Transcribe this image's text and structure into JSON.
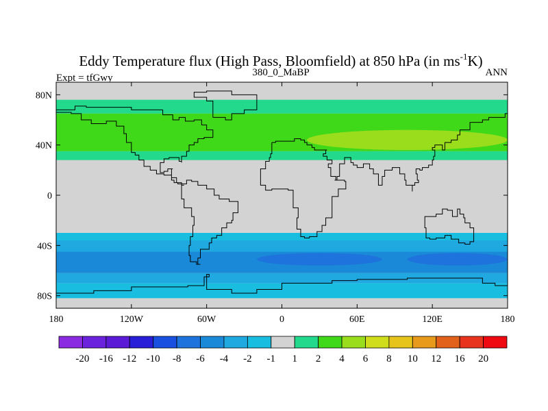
{
  "chart_data": {
    "type": "heatmap",
    "title": "Eddy Temperature flux (High Pass, Bloomfield) at 850 hPa (in ms",
    "title_superscript": "-1",
    "title_end": "K)",
    "left_label": "Expt = tfGwy",
    "center_label": "380_0_MaBP",
    "right_label": "ANN",
    "xlabel": "",
    "ylabel": "",
    "xlim": [
      -180,
      180
    ],
    "ylim": [
      -90,
      90
    ],
    "x_ticks": [
      {
        "value": -180,
        "label": "180"
      },
      {
        "value": -120,
        "label": "120W"
      },
      {
        "value": -60,
        "label": "60W"
      },
      {
        "value": 0,
        "label": "0"
      },
      {
        "value": 60,
        "label": "60E"
      },
      {
        "value": 120,
        "label": "120E"
      },
      {
        "value": 180,
        "label": "180"
      }
    ],
    "y_ticks": [
      {
        "value": 80,
        "label": "80N"
      },
      {
        "value": 40,
        "label": "40N"
      },
      {
        "value": 0,
        "label": "0"
      },
      {
        "value": -40,
        "label": "40S"
      },
      {
        "value": -80,
        "label": "80S"
      }
    ],
    "colorbar": {
      "levels": [
        "-20",
        "-16",
        "-12",
        "-10",
        "-8",
        "-6",
        "-4",
        "-2",
        "-1",
        "1",
        "2",
        "4",
        "6",
        "8",
        "10",
        "12",
        "16",
        "20"
      ],
      "colors": [
        "#8a2be2",
        "#6a22dc",
        "#5a1ad6",
        "#2a1fd8",
        "#1a50e0",
        "#1e74dc",
        "#1a8ad8",
        "#20a8e0",
        "#18bde0",
        "#d3d3d3",
        "#22d98c",
        "#3fd91a",
        "#99dd1c",
        "#cfdd1c",
        "#e7c41c",
        "#e79a1c",
        "#e2621c",
        "#e8341c",
        "#ee0a10"
      ]
    },
    "background_color": "#d3d3d3",
    "zonal_bands": [
      {
        "lat_from": 76,
        "lat_to": 65,
        "level": "1 to 2",
        "color": "#22d98c"
      },
      {
        "lat_from": 65,
        "lat_to": 35,
        "level": "2 to 4",
        "color": "#3fd91a"
      },
      {
        "lat_from": 35,
        "lat_to": 28,
        "level": "1 to 2",
        "color": "#22d98c"
      },
      {
        "lat_from": -30,
        "lat_to": -36,
        "level": "-2 to -1",
        "color": "#18bde0"
      },
      {
        "lat_from": -36,
        "lat_to": -45,
        "level": "-4 to -2",
        "color": "#20a8e0"
      },
      {
        "lat_from": -45,
        "lat_to": -62,
        "level": "-6 to -4",
        "color": "#1a8ad8"
      },
      {
        "lat_from": -62,
        "lat_to": -70,
        "level": "-4 to -2",
        "color": "#20a8e0"
      },
      {
        "lat_from": -70,
        "lat_to": -82,
        "level": "-2 to -1",
        "color": "#18bde0"
      }
    ],
    "patches": [
      {
        "lon_min": 20,
        "lon_max": 180,
        "lat_min": 36,
        "lat_max": 52,
        "color": "#99dd1c",
        "level": "4 to 6"
      },
      {
        "lon_min": -20,
        "lon_max": 80,
        "lat_min": -46,
        "lat_max": -56,
        "color": "#1e74dc",
        "level": "-8 to -6"
      },
      {
        "lon_min": 100,
        "lon_max": 180,
        "lat_min": -46,
        "lat_max": -56,
        "color": "#1e74dc",
        "level": "-8 to -6"
      }
    ],
    "coastlines": [
      [
        [
          -8,
          42
        ],
        [
          -5,
          43
        ],
        [
          5,
          43
        ],
        [
          10,
          45
        ],
        [
          13,
          45
        ],
        [
          15,
          44
        ],
        [
          18,
          42
        ],
        [
          20,
          40
        ],
        [
          24,
          38
        ],
        [
          26,
          36
        ],
        [
          30,
          36
        ],
        [
          36,
          36
        ],
        [
          35,
          33
        ],
        [
          33,
          31
        ],
        [
          36,
          28
        ],
        [
          40,
          25
        ],
        [
          37,
          22
        ],
        [
          39,
          15
        ],
        [
          43,
          12
        ],
        [
          50,
          11
        ],
        [
          51,
          5
        ],
        [
          45,
          -1
        ],
        [
          40,
          -5
        ],
        [
          40,
          -12
        ],
        [
          40,
          -18
        ],
        [
          35,
          -24
        ],
        [
          32,
          -29
        ],
        [
          28,
          -33
        ],
        [
          22,
          -34
        ],
        [
          18,
          -33
        ],
        [
          15,
          -27
        ],
        [
          12,
          -18
        ],
        [
          13,
          -10
        ],
        [
          9,
          -1
        ],
        [
          9,
          4
        ],
        [
          5,
          5
        ],
        [
          -4,
          5
        ],
        [
          -8,
          4
        ],
        [
          -13,
          8
        ],
        [
          -17,
          14
        ],
        [
          -17,
          21
        ],
        [
          -13,
          27
        ],
        [
          -10,
          30
        ],
        [
          -9,
          33
        ],
        [
          -8,
          36
        ],
        [
          -8,
          42
        ]
      ],
      [
        [
          42,
          12
        ],
        [
          44,
          15
        ],
        [
          46,
          25
        ],
        [
          50,
          30
        ],
        [
          55,
          26
        ],
        [
          57,
          24
        ],
        [
          60,
          22
        ],
        [
          65,
          25
        ],
        [
          70,
          21
        ],
        [
          73,
          17
        ],
        [
          77,
          8
        ],
        [
          80,
          15
        ],
        [
          82,
          20
        ],
        [
          88,
          22
        ],
        [
          91,
          22
        ],
        [
          94,
          17
        ],
        [
          98,
          12
        ],
        [
          99,
          8
        ],
        [
          104,
          3
        ],
        [
          104,
          8
        ],
        [
          106,
          10
        ],
        [
          109,
          12
        ],
        [
          108,
          17
        ],
        [
          107,
          21
        ],
        [
          110,
          20
        ],
        [
          112,
          22
        ],
        [
          117,
          24
        ],
        [
          120,
          28
        ],
        [
          121,
          31
        ],
        [
          122,
          36
        ],
        [
          120,
          38
        ],
        [
          122,
          40
        ],
        [
          128,
          36
        ],
        [
          130,
          42
        ],
        [
          135,
          44
        ],
        [
          140,
          48
        ],
        [
          142,
          52
        ],
        [
          150,
          58
        ],
        [
          160,
          60
        ],
        [
          165,
          62
        ],
        [
          178,
          65
        ],
        [
          180,
          68
        ]
      ],
      [
        [
          -180,
          66
        ],
        [
          -168,
          65
        ],
        [
          -160,
          60
        ],
        [
          -152,
          57
        ],
        [
          -140,
          59
        ],
        [
          -132,
          55
        ],
        [
          -126,
          49
        ],
        [
          -124,
          42
        ],
        [
          -120,
          34
        ],
        [
          -117,
          32
        ],
        [
          -114,
          28
        ],
        [
          -110,
          23
        ],
        [
          -105,
          20
        ],
        [
          -100,
          17
        ],
        [
          -94,
          16
        ],
        [
          -88,
          14
        ],
        [
          -84,
          10
        ],
        [
          -80,
          8
        ],
        [
          -78,
          8
        ],
        [
          -80,
          2
        ],
        [
          -80,
          -3
        ],
        [
          -78,
          -10
        ],
        [
          -72,
          -17
        ],
        [
          -70,
          -24
        ],
        [
          -71,
          -33
        ],
        [
          -73,
          -40
        ],
        [
          -74,
          -48
        ],
        [
          -73,
          -53
        ],
        [
          -68,
          -55
        ],
        [
          -65,
          -55
        ],
        [
          -67,
          -50
        ],
        [
          -65,
          -43
        ],
        [
          -58,
          -38
        ],
        [
          -56,
          -34
        ],
        [
          -52,
          -32
        ],
        [
          -48,
          -26
        ],
        [
          -44,
          -22
        ],
        [
          -40,
          -20
        ],
        [
          -39,
          -14
        ],
        [
          -35,
          -8
        ],
        [
          -35,
          -5
        ],
        [
          -42,
          -3
        ],
        [
          -50,
          0
        ],
        [
          -54,
          5
        ],
        [
          -60,
          8
        ],
        [
          -67,
          11
        ],
        [
          -72,
          12
        ],
        [
          -76,
          9
        ],
        [
          -80,
          9
        ],
        [
          -83,
          10
        ],
        [
          -86,
          12
        ],
        [
          -88,
          15
        ],
        [
          -88,
          21
        ],
        [
          -87,
          21
        ],
        [
          -90,
          21
        ],
        [
          -91,
          19
        ],
        [
          -94,
          18
        ],
        [
          -97,
          21
        ],
        [
          -97,
          26
        ],
        [
          -94,
          29
        ],
        [
          -90,
          30
        ],
        [
          -85,
          30
        ],
        [
          -82,
          27
        ],
        [
          -80,
          26
        ],
        [
          -80,
          31
        ],
        [
          -76,
          35
        ],
        [
          -74,
          40
        ],
        [
          -70,
          42
        ],
        [
          -67,
          45
        ],
        [
          -62,
          46
        ],
        [
          -55,
          48
        ],
        [
          -55,
          52
        ],
        [
          -60,
          56
        ],
        [
          -64,
          60
        ],
        [
          -70,
          59
        ],
        [
          -77,
          62
        ],
        [
          -82,
          60
        ],
        [
          -87,
          64
        ],
        [
          -95,
          68
        ],
        [
          -120,
          70
        ],
        [
          -140,
          70
        ],
        [
          -156,
          71
        ],
        [
          -165,
          68
        ],
        [
          -180,
          66
        ]
      ],
      [
        [
          114,
          -22
        ],
        [
          114,
          -26
        ],
        [
          115,
          -34
        ],
        [
          118,
          -35
        ],
        [
          123,
          -34
        ],
        [
          130,
          -32
        ],
        [
          135,
          -35
        ],
        [
          138,
          -35
        ],
        [
          141,
          -38
        ],
        [
          146,
          -39
        ],
        [
          150,
          -37
        ],
        [
          153,
          -32
        ],
        [
          153,
          -26
        ],
        [
          150,
          -22
        ],
        [
          146,
          -18
        ],
        [
          145,
          -15
        ],
        [
          142,
          -11
        ],
        [
          140,
          -17
        ],
        [
          136,
          -15
        ],
        [
          136,
          -12
        ],
        [
          132,
          -11
        ],
        [
          128,
          -15
        ],
        [
          123,
          -17
        ],
        [
          114,
          -22
        ]
      ],
      [
        [
          -180,
          -78
        ],
        [
          -160,
          -78
        ],
        [
          -150,
          -76
        ],
        [
          -120,
          -73
        ],
        [
          -100,
          -73
        ],
        [
          -75,
          -72
        ],
        [
          -62,
          -65
        ],
        [
          -58,
          -63
        ],
        [
          -60,
          -68
        ],
        [
          -60,
          -75
        ],
        [
          -40,
          -78
        ],
        [
          -20,
          -75
        ],
        [
          0,
          -70
        ],
        [
          20,
          -70
        ],
        [
          40,
          -68
        ],
        [
          60,
          -67
        ],
        [
          80,
          -67
        ],
        [
          100,
          -66
        ],
        [
          120,
          -66
        ],
        [
          140,
          -66
        ],
        [
          160,
          -70
        ],
        [
          170,
          -72
        ],
        [
          180,
          -78
        ]
      ],
      [
        [
          -55,
          62
        ],
        [
          -45,
          60
        ],
        [
          -40,
          65
        ],
        [
          -30,
          68
        ],
        [
          -20,
          72
        ],
        [
          -20,
          80
        ],
        [
          -40,
          83
        ],
        [
          -60,
          82
        ],
        [
          -70,
          78
        ],
        [
          -60,
          75
        ],
        [
          -55,
          70
        ],
        [
          -55,
          62
        ]
      ]
    ]
  }
}
